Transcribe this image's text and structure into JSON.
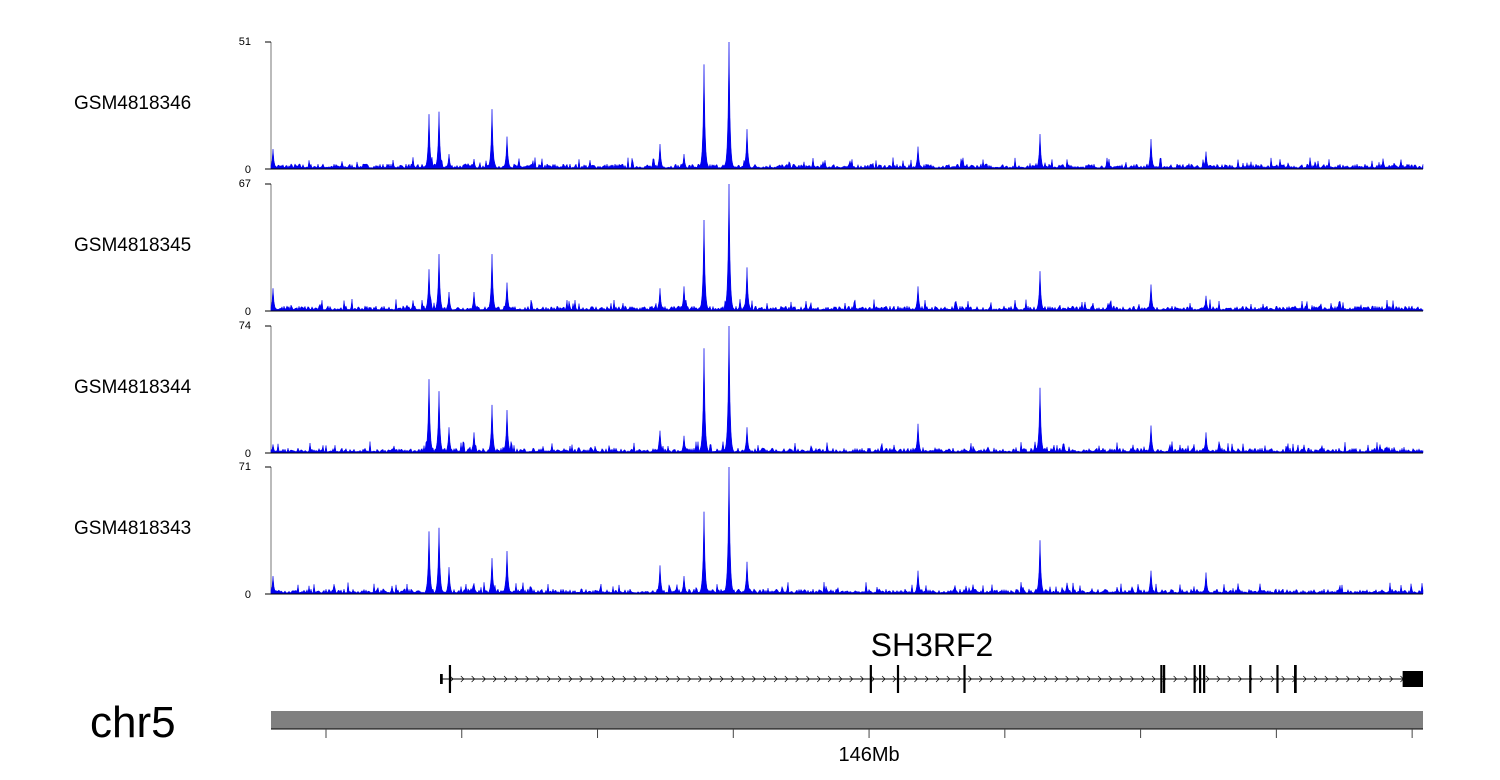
{
  "chart_data": {
    "type": "area",
    "title": "",
    "chromosome": "chr5",
    "xlabel": "146Mb",
    "xlim_mb": [
      145.9119,
      146.0816
    ],
    "x_ticks_mb": [
      145.92,
      145.94,
      145.96,
      145.98,
      146.0,
      146.02,
      146.04,
      146.06,
      146.08
    ],
    "x_tick_labels": {
      "146.0": "146Mb"
    },
    "color": "#0000ee",
    "peak_positions_mb": [
      145.9122,
      145.9352,
      145.9366,
      145.9381,
      145.9418,
      145.9444,
      145.9466,
      145.9692,
      145.9727,
      145.9757,
      145.9794,
      145.982,
      146.0072,
      146.0252,
      146.0416,
      146.0497
    ],
    "tracks": [
      {
        "name": "GSM4818346",
        "ymax": 51,
        "ymin": 0,
        "ymax_label": "51",
        "ymin_label": "0",
        "peak_values": [
          8,
          22,
          23,
          6,
          4,
          24,
          13,
          10,
          6,
          42,
          51,
          16,
          9,
          14,
          12,
          7
        ]
      },
      {
        "name": "GSM4818345",
        "ymax": 67,
        "ymin": 0,
        "ymax_label": "67",
        "ymin_label": "0",
        "peak_values": [
          12,
          22,
          30,
          10,
          10,
          30,
          15,
          12,
          13,
          48,
          67,
          23,
          13,
          21,
          14,
          8
        ]
      },
      {
        "name": "GSM4818344",
        "ymax": 74,
        "ymin": 0,
        "ymax_label": "74",
        "ymin_label": "0",
        "peak_values": [
          5,
          43,
          36,
          15,
          12,
          28,
          25,
          13,
          10,
          61,
          74,
          15,
          17,
          38,
          16,
          12
        ]
      },
      {
        "name": "GSM4818343",
        "ymax": 71,
        "ymin": 0,
        "ymax_label": "71",
        "ymin_label": "0",
        "peak_values": [
          10,
          35,
          37,
          15,
          6,
          20,
          24,
          16,
          10,
          46,
          71,
          18,
          13,
          30,
          13,
          12
        ]
      }
    ],
    "gene": {
      "name": "SH3RF2",
      "start_mb": 145.9368,
      "end_mb": 146.0816,
      "strand": "+",
      "exons_mb": [
        [
          145.9368,
          145.9372
        ],
        [
          145.9381,
          145.9381
        ],
        [
          146.0001,
          146.0001
        ],
        [
          146.0041,
          146.0041
        ],
        [
          146.0139,
          146.0139
        ],
        [
          146.0429,
          146.0429
        ],
        [
          146.0433,
          146.0433
        ],
        [
          146.0478,
          146.0478
        ],
        [
          146.0486,
          146.0486
        ],
        [
          146.0492,
          146.0492
        ],
        [
          146.056,
          146.056
        ],
        [
          146.06,
          146.06
        ],
        [
          146.0626,
          146.063
        ],
        [
          146.0786,
          146.0816
        ]
      ]
    }
  }
}
